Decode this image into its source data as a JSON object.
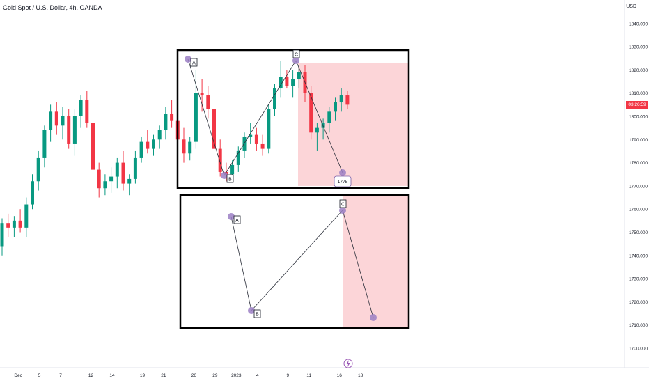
{
  "header": {
    "title": "Gold Spot / U.S. Dollar, 4h, OANDA",
    "currency": "USD"
  },
  "price_tag": {
    "value": "03:26:59",
    "color": "#f23645"
  },
  "colors": {
    "up": "#089981",
    "down": "#f23645",
    "zone": "#fcd5d8",
    "wave_point": "#9b7fc4"
  },
  "icons": {
    "bottom": "lightning-icon"
  },
  "chart_data": {
    "type": "candlestick",
    "title": "Gold Spot / U.S. Dollar, 4h, OANDA",
    "y_ticks": [
      1700,
      1710,
      1720,
      1730,
      1740,
      1750,
      1760,
      1770,
      1780,
      1790,
      1800,
      1810,
      1820,
      1830,
      1840
    ],
    "y_tick_labels": [
      "1700.000",
      "1710.000",
      "1720.000",
      "1730.000",
      "1740.000",
      "1750.000",
      "1760.000",
      "1770.000",
      "1780.000",
      "1790.000",
      "1800.000",
      "1810.000",
      "1820.000",
      "1830.000",
      "1840.000"
    ],
    "ylim": [
      1696,
      1852
    ],
    "x_ticks": [
      {
        "label": "Dec",
        "index": 3
      },
      {
        "label": "5",
        "index": 6.5
      },
      {
        "label": "7",
        "index": 10
      },
      {
        "label": "12",
        "index": 15
      },
      {
        "label": "14",
        "index": 18.5
      },
      {
        "label": "19",
        "index": 23.5
      },
      {
        "label": "21",
        "index": 27
      },
      {
        "label": "26",
        "index": 32
      },
      {
        "label": "29",
        "index": 35.5
      },
      {
        "label": "2023",
        "index": 39
      },
      {
        "label": "4",
        "index": 42.5
      },
      {
        "label": "9",
        "index": 47.5
      },
      {
        "label": "11",
        "index": 51
      },
      {
        "label": "16",
        "index": 56
      },
      {
        "label": "18",
        "index": 59.5
      }
    ],
    "candles": [
      [
        1744,
        1756,
        1740,
        1754
      ],
      [
        1754,
        1758,
        1748,
        1752
      ],
      [
        1752,
        1757,
        1748,
        1755
      ],
      [
        1755,
        1760,
        1750,
        1752
      ],
      [
        1752,
        1765,
        1748,
        1762
      ],
      [
        1762,
        1775,
        1760,
        1772
      ],
      [
        1772,
        1785,
        1768,
        1782
      ],
      [
        1782,
        1796,
        1778,
        1794
      ],
      [
        1794,
        1805,
        1789,
        1802
      ],
      [
        1802,
        1806,
        1792,
        1796
      ],
      [
        1796,
        1804,
        1790,
        1800
      ],
      [
        1800,
        1803,
        1786,
        1788
      ],
      [
        1788,
        1803,
        1783,
        1800
      ],
      [
        1800,
        1809,
        1795,
        1807
      ],
      [
        1807,
        1811,
        1795,
        1797
      ],
      [
        1797,
        1800,
        1774,
        1777
      ],
      [
        1777,
        1780,
        1765,
        1769
      ],
      [
        1769,
        1775,
        1766,
        1772
      ],
      [
        1772,
        1778,
        1767,
        1774
      ],
      [
        1774,
        1782,
        1769,
        1780
      ],
      [
        1780,
        1785,
        1768,
        1771
      ],
      [
        1771,
        1775,
        1766,
        1773
      ],
      [
        1773,
        1785,
        1771,
        1782
      ],
      [
        1782,
        1791,
        1780,
        1789
      ],
      [
        1789,
        1794,
        1784,
        1786
      ],
      [
        1786,
        1792,
        1783,
        1790
      ],
      [
        1790,
        1796,
        1786,
        1794
      ],
      [
        1794,
        1804,
        1790,
        1801
      ],
      [
        1801,
        1807,
        1795,
        1798
      ],
      [
        1798,
        1801,
        1787,
        1790
      ],
      [
        1790,
        1795,
        1780,
        1784
      ],
      [
        1784,
        1791,
        1781,
        1789
      ],
      [
        1789,
        1820,
        1786,
        1810
      ],
      [
        1810,
        1816,
        1802,
        1809
      ],
      [
        1809,
        1813,
        1799,
        1803
      ],
      [
        1803,
        1807,
        1782,
        1786
      ],
      [
        1786,
        1790,
        1774,
        1776
      ],
      [
        1776,
        1780,
        1772,
        1775
      ],
      [
        1775,
        1781,
        1773,
        1779
      ],
      [
        1779,
        1787,
        1776,
        1785
      ],
      [
        1785,
        1793,
        1782,
        1791
      ],
      [
        1791,
        1797,
        1788,
        1792
      ],
      [
        1792,
        1795,
        1785,
        1788
      ],
      [
        1788,
        1792,
        1783,
        1786
      ],
      [
        1786,
        1805,
        1784,
        1803
      ],
      [
        1803,
        1814,
        1800,
        1812
      ],
      [
        1812,
        1824,
        1808,
        1817
      ],
      [
        1817,
        1820,
        1812,
        1813
      ],
      [
        1813,
        1820,
        1808,
        1816
      ],
      [
        1816,
        1822,
        1812,
        1819
      ],
      [
        1819,
        1822,
        1806,
        1810
      ],
      [
        1810,
        1813,
        1790,
        1793
      ],
      [
        1793,
        1797,
        1785,
        1795
      ],
      [
        1795,
        1799,
        1790,
        1797
      ],
      [
        1797,
        1804,
        1793,
        1802
      ],
      [
        1802,
        1808,
        1798,
        1806
      ],
      [
        1806,
        1812,
        1802,
        1809
      ],
      [
        1809,
        1811,
        1803,
        1805
      ]
    ],
    "projection_1": {
      "points": [
        {
          "label": "A",
          "index": 32,
          "price": 1825
        },
        {
          "label": "B",
          "index": 37.5,
          "price": 1774
        },
        {
          "label": "C",
          "index": 48.5,
          "price": 1825
        },
        {
          "label": "",
          "index": 55.5,
          "price": 1775
        }
      ],
      "target_label": "1775"
    },
    "projection_2": {
      "points": [
        {
          "label": "A",
          "index": 39,
          "price": 1756.5
        },
        {
          "label": "B",
          "index": 42.5,
          "price": 1715.5
        },
        {
          "label": "C",
          "index": 58,
          "price": 1759
        },
        {
          "label": "",
          "index": 63,
          "price": 1712.5
        }
      ]
    }
  }
}
